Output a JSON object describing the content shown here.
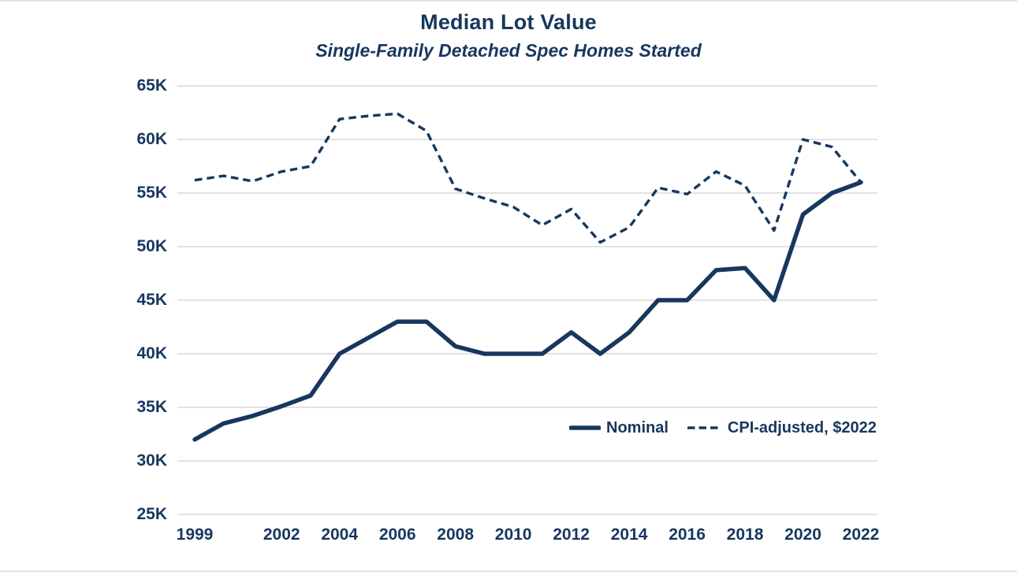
{
  "title": "Median Lot Value",
  "subtitle": "Single-Family Detached Spec Homes Started",
  "chart_data": {
    "type": "line",
    "title": "Median Lot Value",
    "subtitle": "Single-Family Detached Spec Homes Started",
    "unit": "USD thousands",
    "x": [
      1999,
      2000,
      2001,
      2002,
      2003,
      2004,
      2005,
      2006,
      2007,
      2008,
      2009,
      2010,
      2011,
      2012,
      2013,
      2014,
      2015,
      2016,
      2017,
      2018,
      2019,
      2020,
      2021,
      2022
    ],
    "series": [
      {
        "name": "Nominal",
        "style": "solid",
        "values": [
          32.0,
          33.5,
          34.2,
          35.1,
          36.1,
          40.0,
          41.5,
          43.0,
          43.0,
          40.7,
          40.0,
          40.0,
          40.0,
          42.0,
          40.0,
          42.0,
          45.0,
          45.0,
          47.8,
          48.0,
          45.0,
          53.0,
          55.0,
          56.0
        ]
      },
      {
        "name": "CPI-adjusted, $2022",
        "style": "dashed",
        "values": [
          56.2,
          56.6,
          56.1,
          57.0,
          57.5,
          61.9,
          62.2,
          62.4,
          60.8,
          55.4,
          54.5,
          53.7,
          52.0,
          53.5,
          50.4,
          51.8,
          55.5,
          54.9,
          57.0,
          55.7,
          51.5,
          60.0,
          59.3,
          56.0
        ]
      }
    ],
    "ylim": [
      25,
      65
    ],
    "ytick_interval": 5,
    "ytick_labels": [
      "25K",
      "30K",
      "35K",
      "40K",
      "45K",
      "50K",
      "55K",
      "60K",
      "65K"
    ],
    "xticks": [
      1999,
      2002,
      2004,
      2006,
      2008,
      2010,
      2012,
      2014,
      2016,
      2018,
      2020,
      2022
    ],
    "grid": "horizontal",
    "legend_position": "inside-bottom-right",
    "colors": {
      "line": "#17375e",
      "text": "#17375e",
      "gridline": "#d9d9d9",
      "background": "#ffffff"
    }
  }
}
